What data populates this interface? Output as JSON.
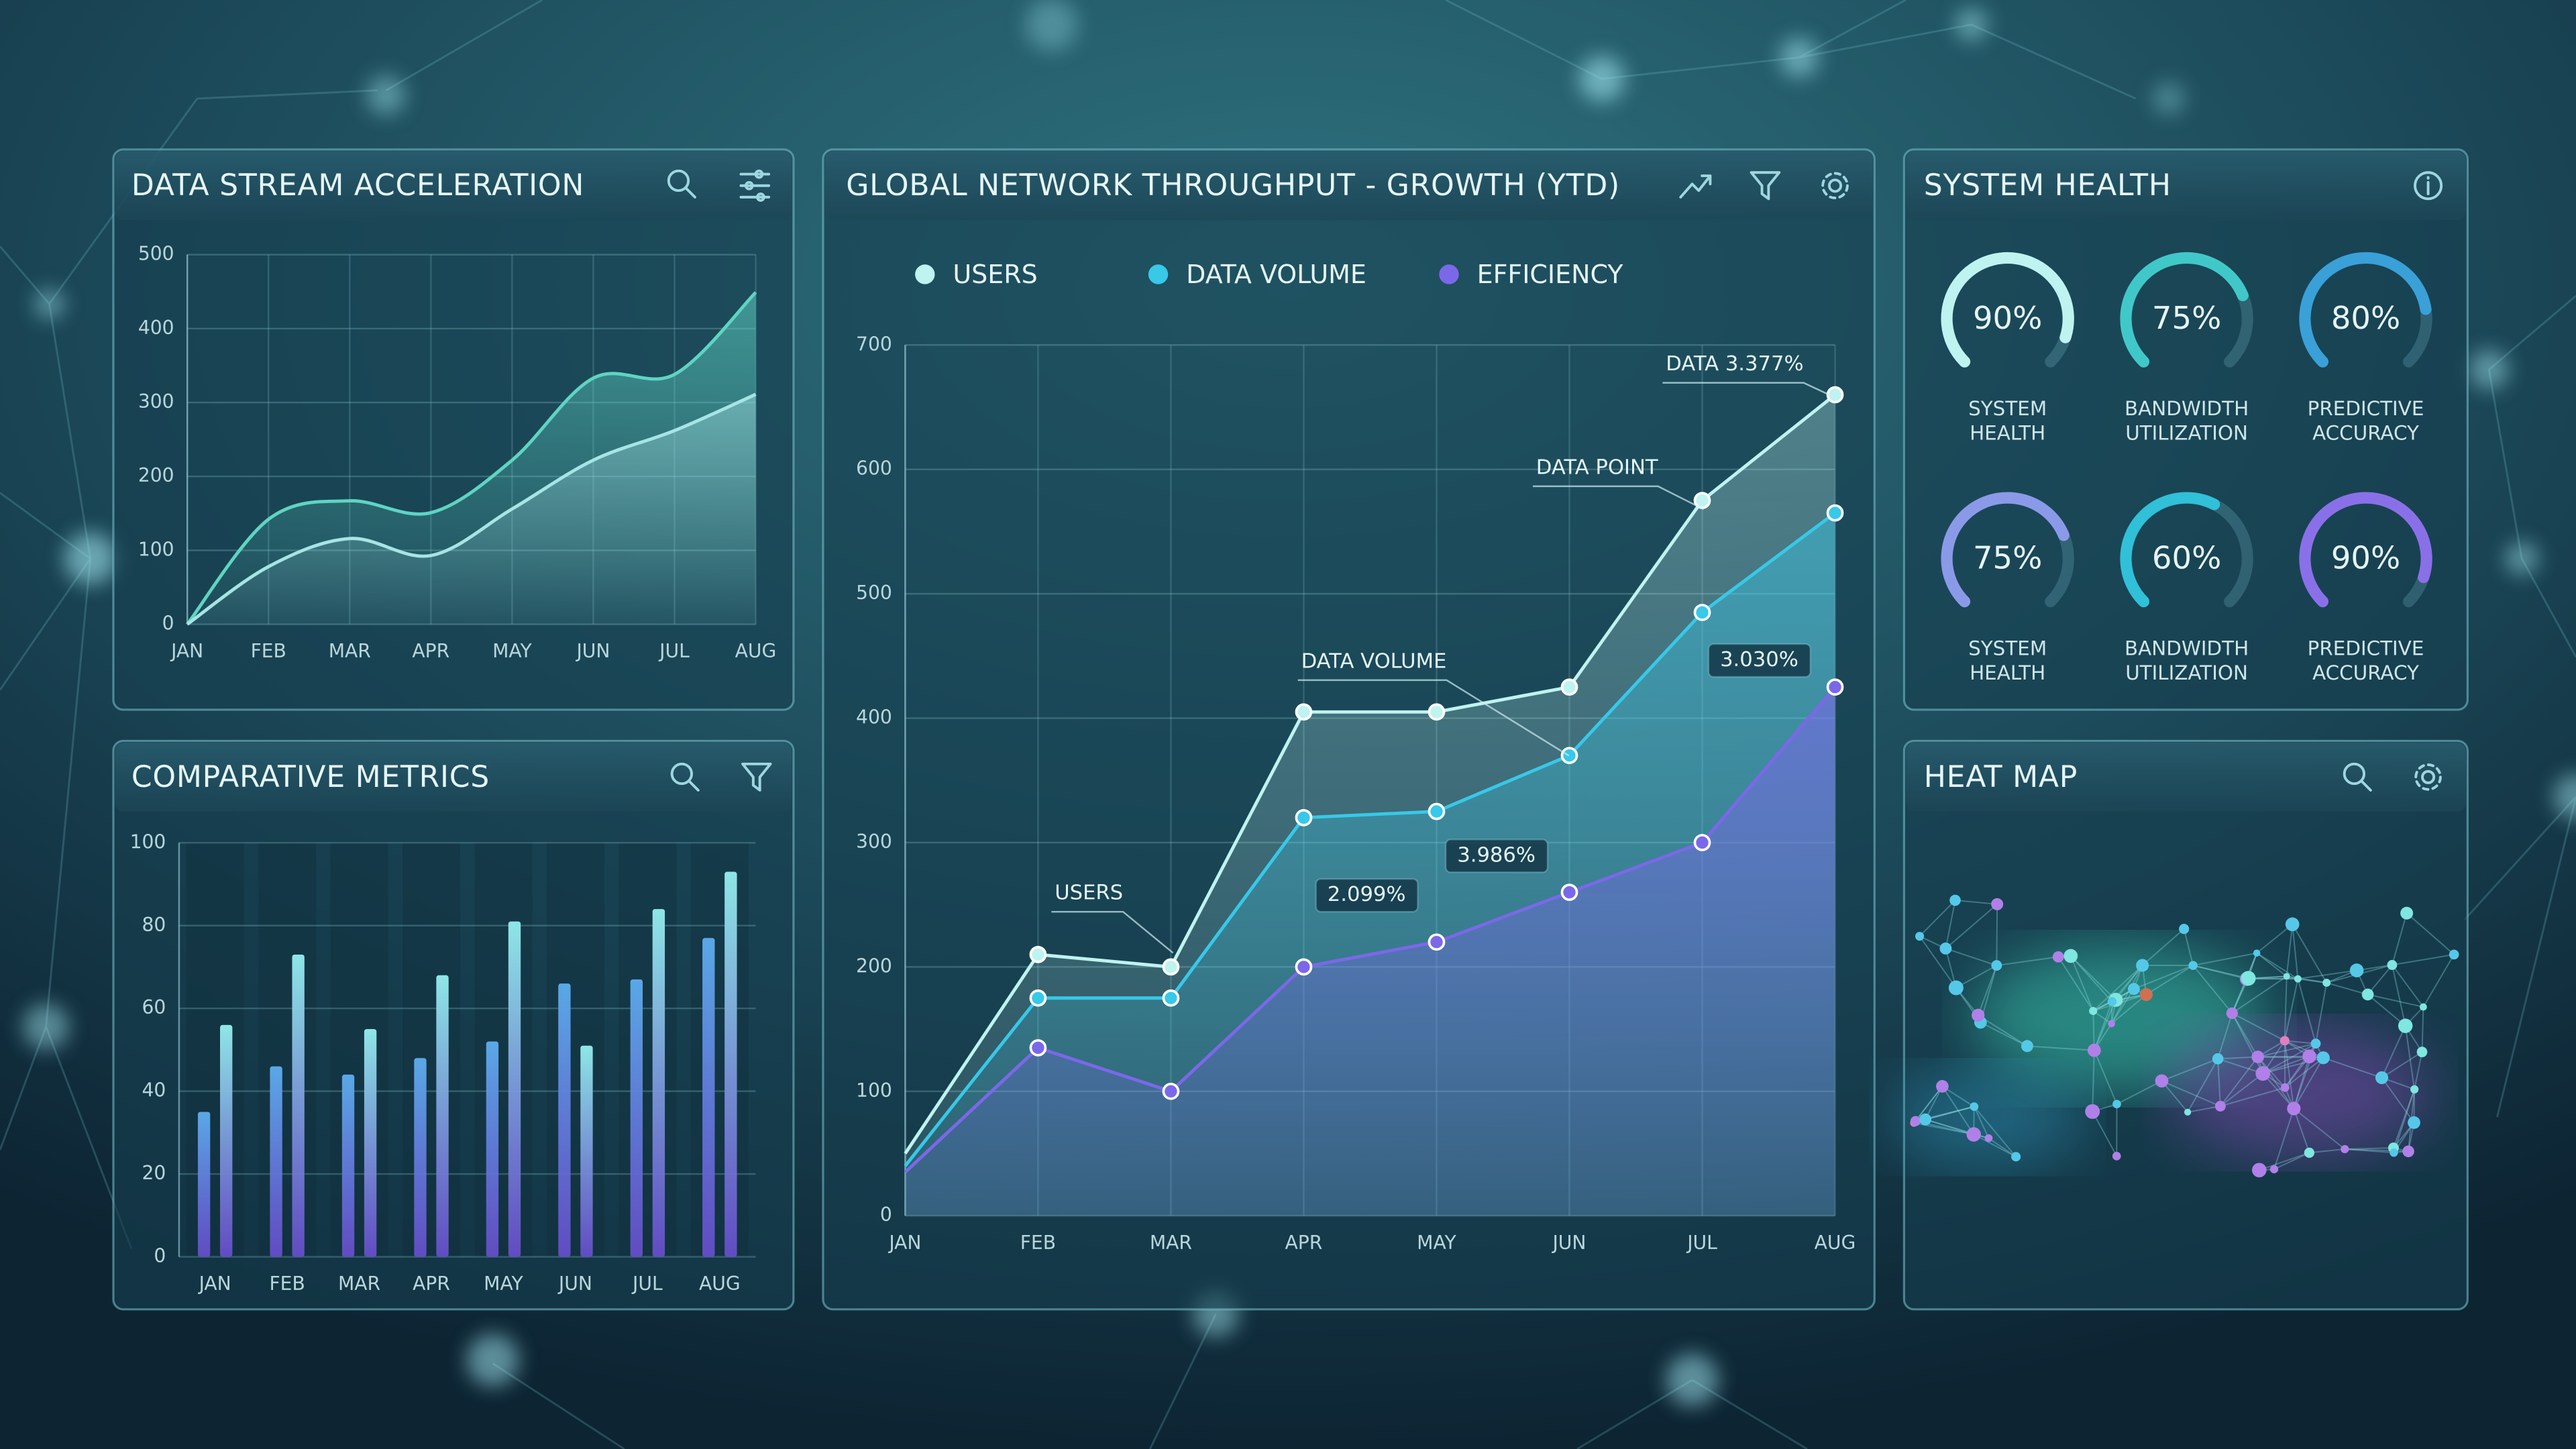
{
  "chart_data": [
    {
      "type": "area",
      "title": "DATA STREAM ACCELERATION",
      "categories": [
        "JAN",
        "FEB",
        "MAR",
        "APR",
        "MAY",
        "JUN",
        "JUL",
        "AUG"
      ],
      "series": [
        {
          "color": "#5fd4c4",
          "values": [
            0,
            142,
            167,
            151,
            222,
            333,
            338,
            449
          ]
        },
        {
          "color": "#a6e4e6",
          "values": [
            0,
            78,
            116,
            93,
            156,
            222,
            262,
            311
          ]
        }
      ],
      "ylim": [
        0,
        500
      ],
      "yticks": [
        0,
        100,
        200,
        300,
        400,
        500
      ],
      "grid": true
    },
    {
      "type": "bar",
      "title": "COMPARATIVE METRICS",
      "categories": [
        "JAN",
        "FEB",
        "MAR",
        "APR",
        "MAY",
        "JUN",
        "JUL",
        "AUG"
      ],
      "series": [
        {
          "color": "#5aa8e6",
          "values": [
            35,
            46,
            44,
            48,
            52,
            66,
            67,
            77
          ]
        },
        {
          "color": "#8ee6e6",
          "values": [
            56,
            73,
            55,
            68,
            81,
            51,
            84,
            93
          ]
        }
      ],
      "ylim": [
        0,
        100
      ],
      "yticks": [
        0,
        20,
        40,
        60,
        80,
        100
      ],
      "grid": true
    },
    {
      "type": "line",
      "title": "GLOBAL NETWORK THROUGHPUT - GROWTH (YTD)",
      "categories": [
        "JAN",
        "FEB",
        "MAR",
        "APR",
        "MAY",
        "JUN",
        "JUL",
        "AUG"
      ],
      "series": [
        {
          "name": "USERS",
          "color": "#bff3f0",
          "values": [
            50,
            210,
            200,
            405,
            405,
            425,
            575,
            660
          ]
        },
        {
          "name": "DATA VOLUME",
          "color": "#38c8e8",
          "values": [
            40,
            175,
            175,
            320,
            325,
            370,
            485,
            565
          ]
        },
        {
          "name": "EFFICIENCY",
          "color": "#7b68e8",
          "values": [
            35,
            135,
            100,
            200,
            220,
            260,
            300,
            425
          ]
        }
      ],
      "annotations": [
        "DATA 3.377%",
        "DATA POINT",
        "DATA VOLUME",
        "3.030%",
        "3.986%",
        "2.099%",
        "USERS"
      ],
      "ylim": [
        0,
        700
      ],
      "yticks": [
        0,
        100,
        200,
        300,
        400,
        500,
        600,
        700
      ],
      "grid": true,
      "legend": "top"
    },
    {
      "type": "gauge",
      "title": "SYSTEM HEALTH",
      "categories": [
        "SYSTEM HEALTH",
        "BANDWIDTH UTILIZATION",
        "PREDICTIVE ACCURACY",
        "SYSTEM HEALTH",
        "BANDWIDTH UTILIZATION",
        "PREDICTIVE ACCURACY"
      ],
      "values": [
        90,
        75,
        80,
        75,
        60,
        90
      ],
      "value_labels": [
        "90%",
        "75%",
        "80%",
        "75%",
        "60%",
        "90%"
      ],
      "colors": [
        "#bff3f0",
        "#40c8c8",
        "#3aa0d8",
        "#8a9ae8",
        "#30c0d8",
        "#8a70e8"
      ],
      "ylim": [
        0,
        100
      ]
    },
    {
      "type": "network",
      "title": "HEAT MAP"
    }
  ]
}
